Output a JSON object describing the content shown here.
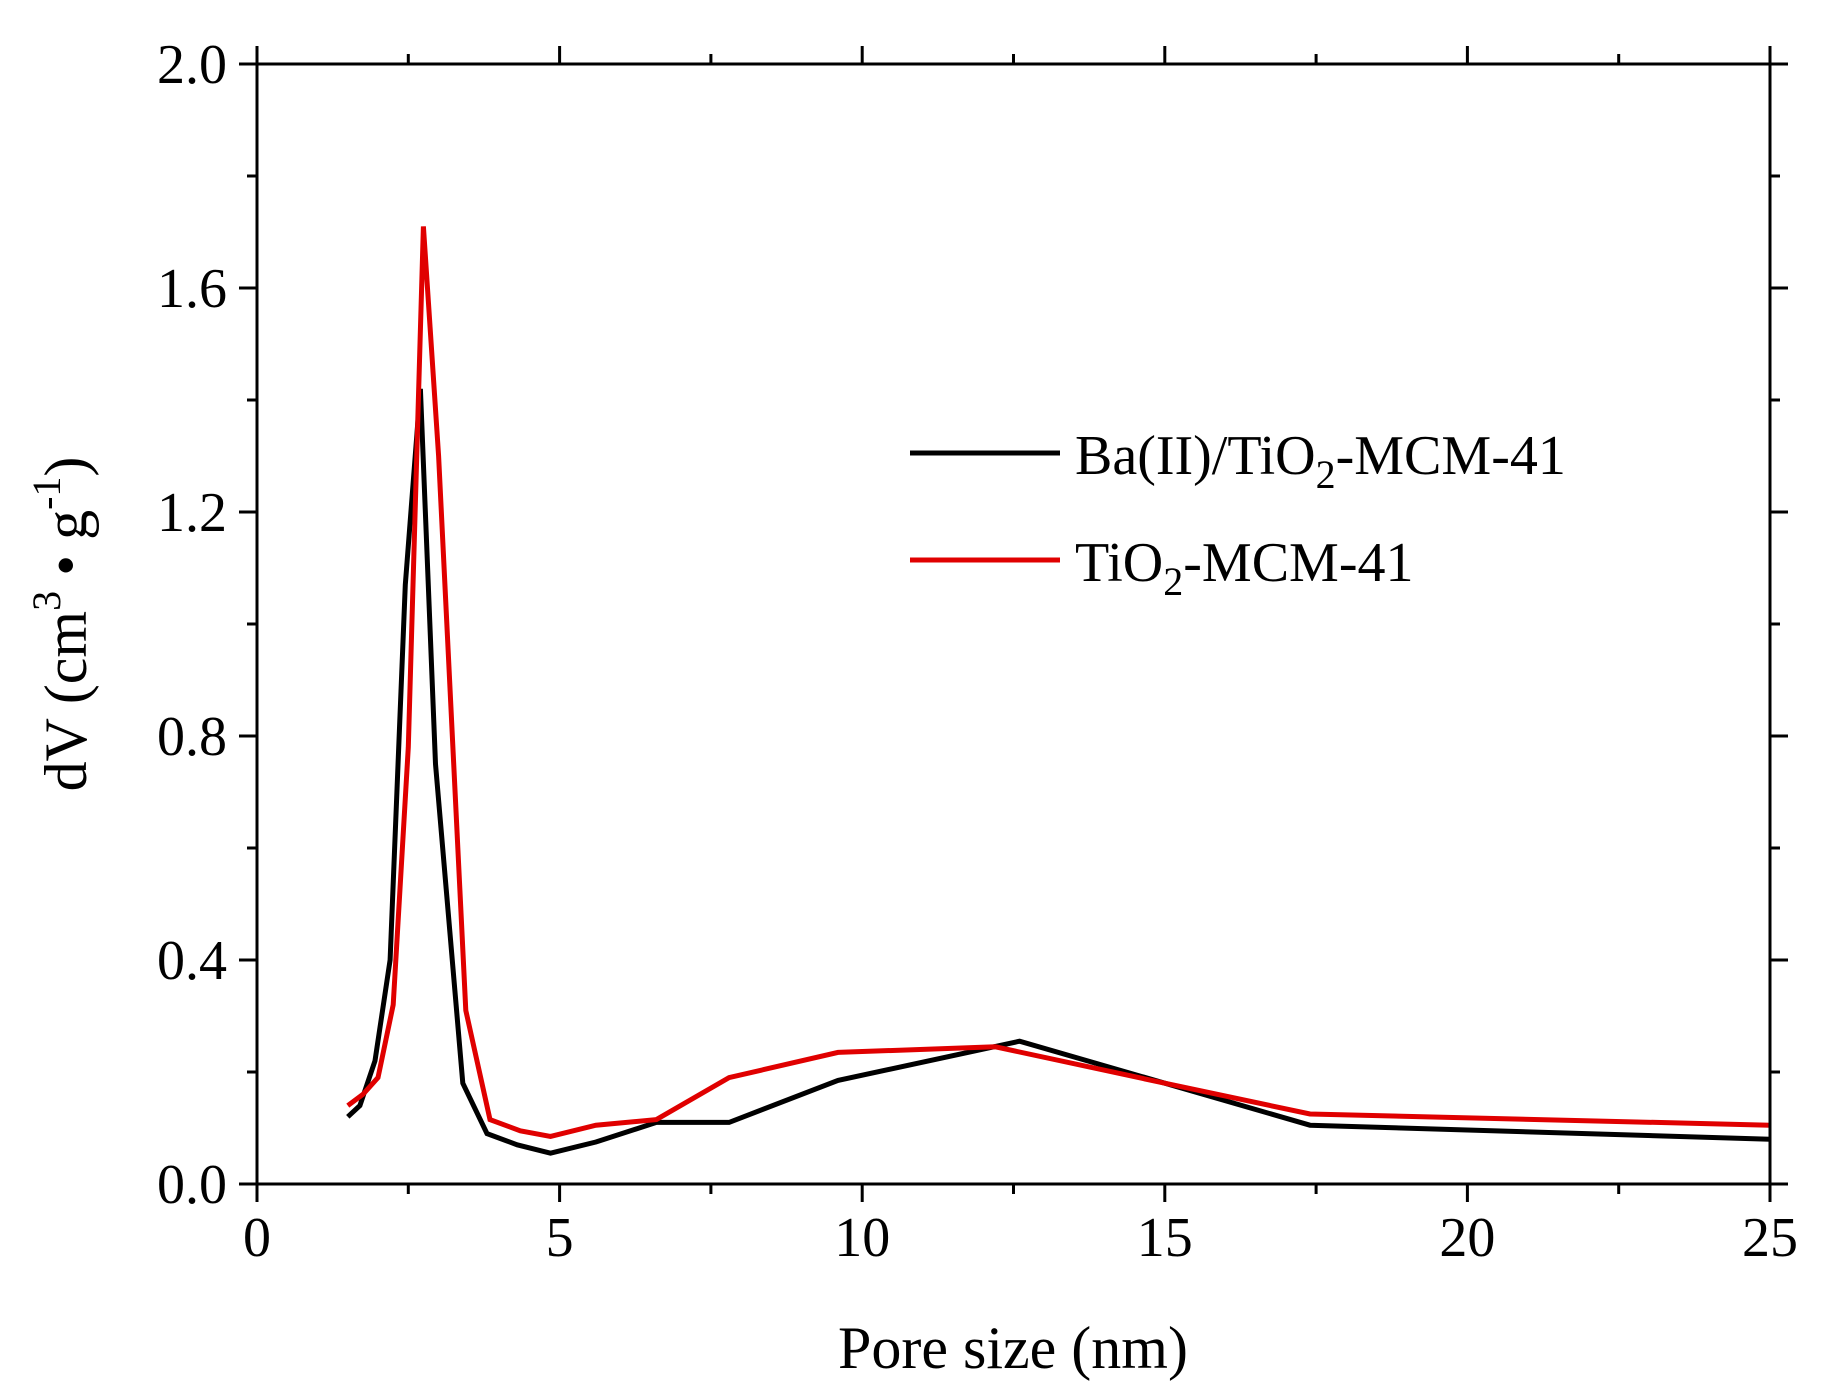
{
  "chart_data": {
    "type": "line",
    "title": "",
    "xlabel": "Pore size (nm)",
    "ylabel": {
      "prefix": "dV (cm",
      "sup1": "3",
      "middle": " • g",
      "sup2": "-1",
      "suffix": ")"
    },
    "xlim": [
      0,
      25
    ],
    "ylim": [
      0,
      2.0
    ],
    "xticks": [
      0,
      5,
      10,
      15,
      20,
      25
    ],
    "xtick_labels": [
      "0",
      "5",
      "10",
      "15",
      "20",
      "25"
    ],
    "yticks": [
      0.0,
      0.4,
      0.8,
      1.2,
      1.6,
      2.0
    ],
    "ytick_labels": [
      "0.0",
      "0.4",
      "0.8",
      "1.2",
      "1.6",
      "2.0"
    ],
    "grid": false,
    "legend_position": "upper-right",
    "series": [
      {
        "name": "Ba(II)/TiO2-MCM-41",
        "label_parts": {
          "main": "Ba(II)/TiO",
          "sub": "2",
          "tail": "-MCM-41"
        },
        "color": "#000000",
        "x": [
          1.5,
          1.7,
          1.95,
          2.2,
          2.45,
          2.7,
          2.95,
          3.4,
          3.8,
          4.3,
          4.85,
          5.6,
          6.6,
          7.8,
          9.6,
          12.6,
          17.4,
          25.0
        ],
        "y": [
          0.12,
          0.14,
          0.22,
          0.4,
          1.07,
          1.42,
          0.75,
          0.18,
          0.09,
          0.07,
          0.055,
          0.075,
          0.11,
          0.11,
          0.185,
          0.255,
          0.105,
          0.08
        ]
      },
      {
        "name": "TiO2-MCM-41",
        "label_parts": {
          "main": "TiO",
          "sub": "2",
          "tail": "-MCM-41"
        },
        "color": "#e00000",
        "x": [
          1.5,
          1.75,
          2.0,
          2.25,
          2.5,
          2.75,
          3.0,
          3.45,
          3.85,
          4.35,
          4.85,
          5.6,
          6.6,
          7.8,
          9.6,
          12.2,
          15.0,
          17.4,
          25.0
        ],
        "y": [
          0.14,
          0.16,
          0.19,
          0.32,
          0.78,
          1.71,
          1.3,
          0.31,
          0.115,
          0.095,
          0.085,
          0.105,
          0.115,
          0.19,
          0.235,
          0.245,
          0.18,
          0.125,
          0.105
        ]
      }
    ]
  }
}
